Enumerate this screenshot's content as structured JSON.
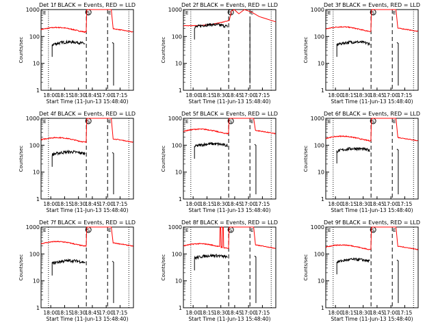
{
  "chart_data": {
    "type": "line",
    "ylabel": "Counts/sec",
    "xlabel": "Start Time (11-Jun-13 15:48:40)",
    "x_ticks": [
      "18:00",
      "18:15",
      "18:30",
      "18:45",
      "17:00",
      "17:15"
    ],
    "y_ticks": [
      "1",
      "10",
      "100",
      "1000"
    ],
    "ylim": [
      1,
      1000
    ],
    "yscale": "log",
    "grid": false,
    "marker_labels": [
      "S",
      "E"
    ],
    "colors": {
      "events": "#000000",
      "lld": "#ff0000"
    },
    "panels": [
      {
        "title": "Det 1f BLACK = Events, RED = LLD",
        "variant": "normal",
        "red_level": 180,
        "black_level": 50
      },
      {
        "title": "Det 2f BLACK = Events, RED = LLD",
        "variant": "det2",
        "red_level": 250,
        "black_level": 220
      },
      {
        "title": "Det 3f BLACK = Events, RED = LLD",
        "variant": "normal",
        "red_level": 190,
        "black_level": 50
      },
      {
        "title": "Det 4f BLACK = Events, RED = LLD",
        "variant": "normal",
        "red_level": 160,
        "black_level": 45
      },
      {
        "title": "Det 5f BLACK = Events, RED = LLD",
        "variant": "normal",
        "red_level": 330,
        "black_level": 90
      },
      {
        "title": "Det 6f BLACK = Events, RED = LLD",
        "variant": "normal",
        "red_level": 180,
        "black_level": 60
      },
      {
        "title": "Det 7f BLACK = Events, RED = LLD",
        "variant": "normal",
        "red_level": 240,
        "black_level": 45
      },
      {
        "title": "Det 8f BLACK = Events, RED = LLD",
        "variant": "det8",
        "red_level": 200,
        "black_level": 70
      },
      {
        "title": "Det 9f BLACK = Events, RED = LLD",
        "variant": "normal",
        "red_level": 180,
        "black_level": 50
      }
    ]
  }
}
